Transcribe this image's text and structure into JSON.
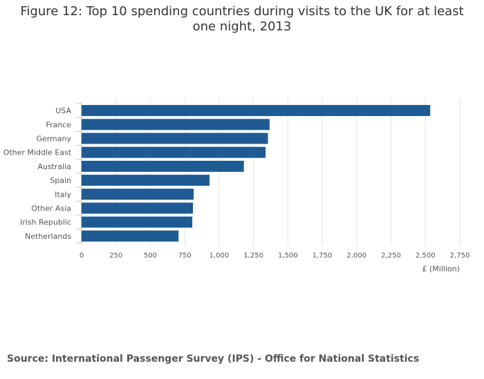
{
  "chart_data": {
    "type": "bar",
    "orientation": "horizontal",
    "title": "Figure 12: Top 10 spending countries during visits to the UK for at least one night, 2013",
    "categories": [
      "USA",
      "France",
      "Germany",
      "Other Middle East",
      "Australia",
      "Spain",
      "Italy",
      "Other Asia",
      "Irish Republic",
      "Netherlands"
    ],
    "values": [
      2535,
      1367,
      1355,
      1338,
      1180,
      930,
      815,
      810,
      805,
      705
    ],
    "xlabel": "£ (Million)",
    "ylabel": "",
    "xlim": [
      0,
      2750
    ],
    "xticks": [
      0,
      250,
      500,
      750,
      1000,
      1250,
      1500,
      1750,
      2000,
      2250,
      2500,
      2750
    ],
    "xtick_labels": [
      "0",
      "250",
      "500",
      "750",
      "1,000",
      "1,250",
      "1,500",
      "1,750",
      "2,000",
      "2,250",
      "2,500",
      "2,750"
    ],
    "grid": true,
    "legend": "none",
    "bar_color": "#1f5a92"
  },
  "source": "Source: International Passenger Survey (IPS) - Office for National Statistics"
}
